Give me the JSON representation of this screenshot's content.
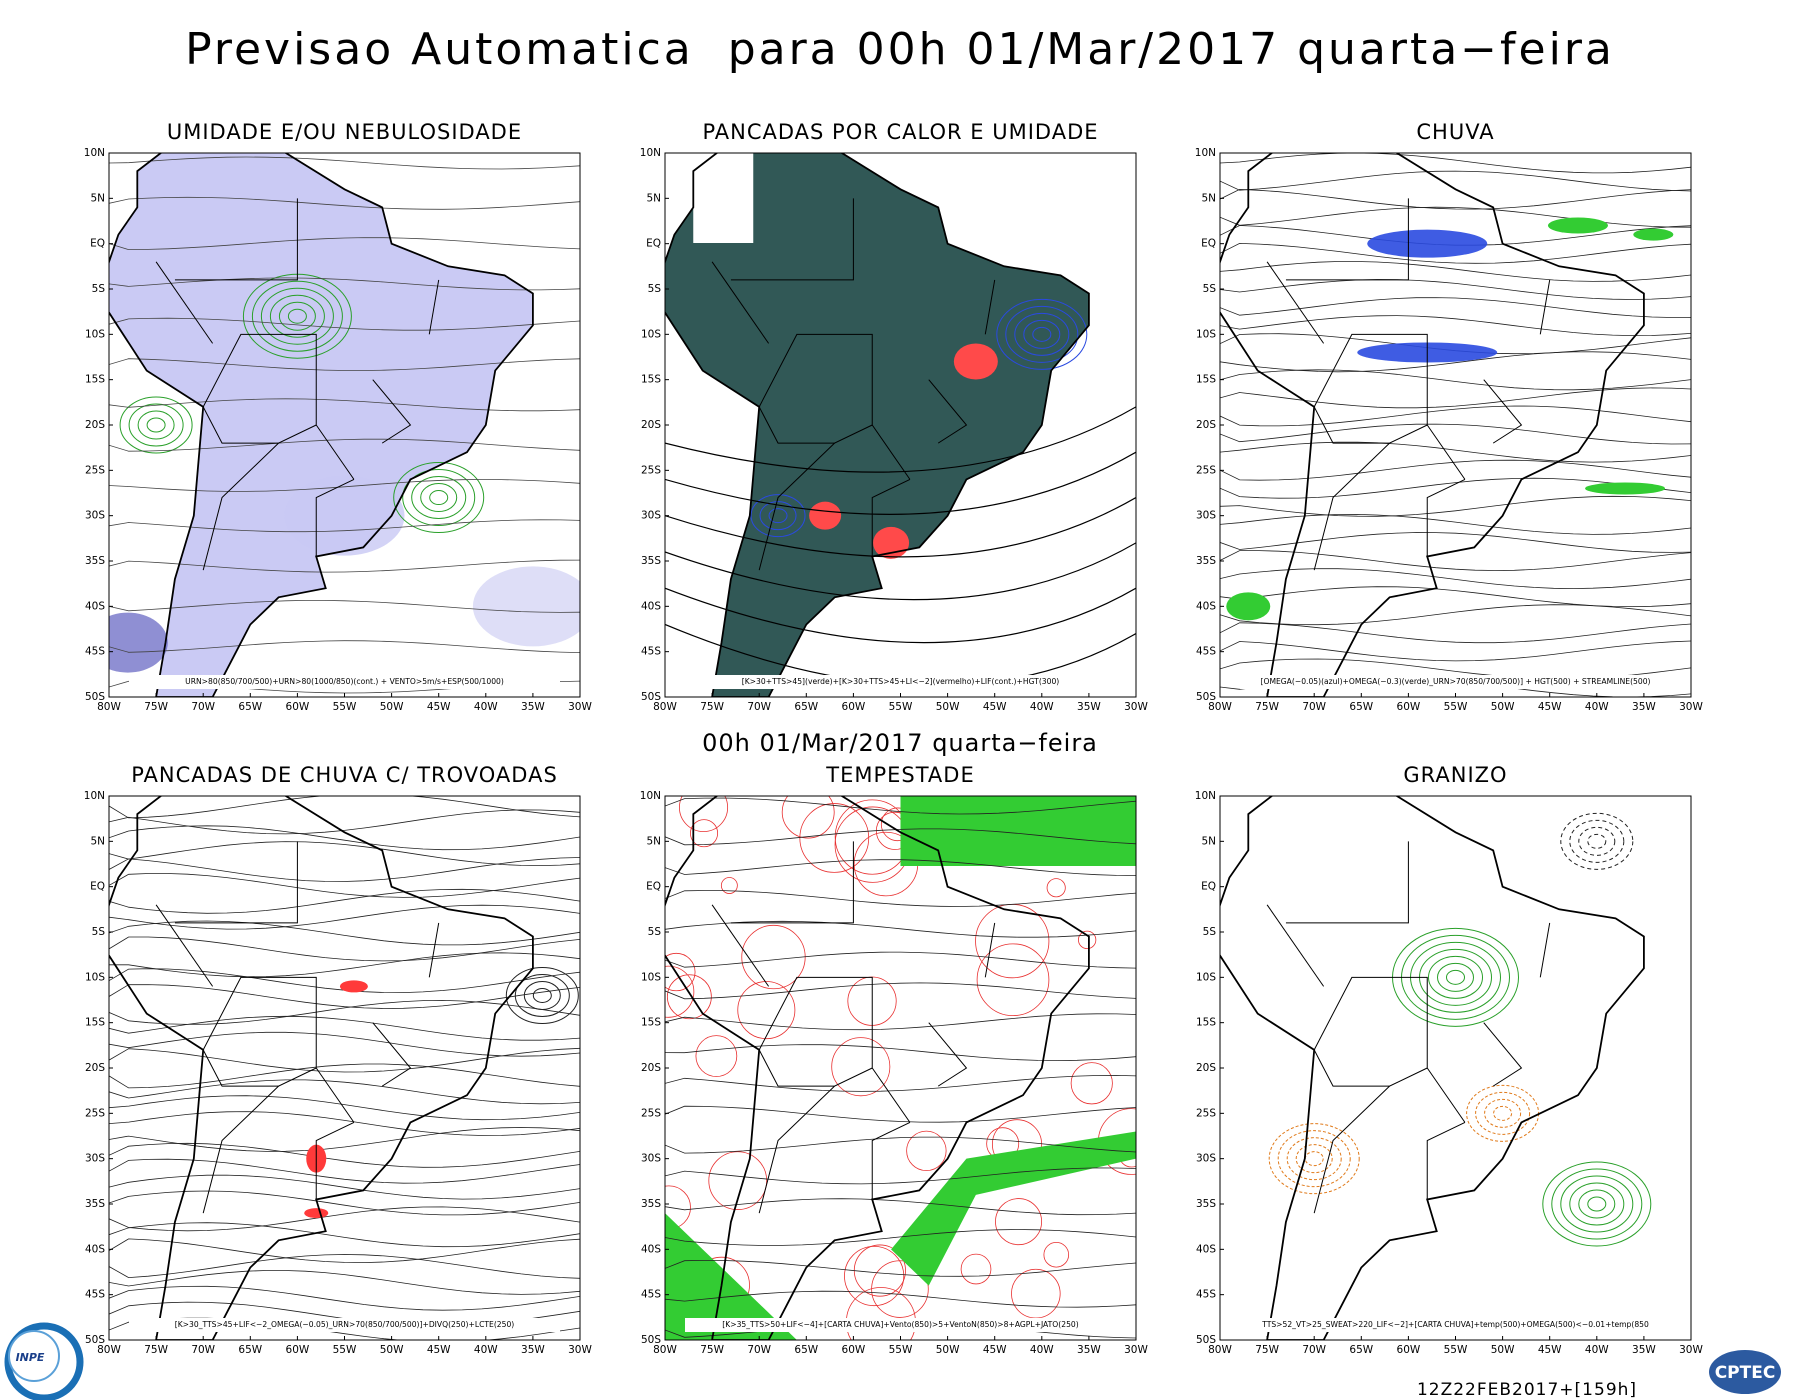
{
  "header": {
    "title": "Previsao Automatica  para 00h 01/Mar/2017 quarta−feira",
    "subtitle": "00h 01/Mar/2017 quarta−feira"
  },
  "panels": [
    {
      "title": "UMIDADE E/OU NEBULOSIDADE",
      "caption": "URN>80(850/700/500)+URN>80(1000/850)(cont.) + VENTO>5m/s+ESP(500/1000)"
    },
    {
      "title": "PANCADAS POR CALOR E UMIDADE",
      "caption": "[K>30+TTS>45](verde)+[K>30+TTS>45+LI<−2](vermelho)+LIF(cont.)+HGT(300)"
    },
    {
      "title": "CHUVA",
      "caption": "[OMEGA(−0.05)(azul)+OMEGA(−0.3)(verde)_URN>70(850/700/500)] + HGT(500) + STREAMLINE(500)"
    },
    {
      "title": "PANCADAS DE CHUVA C/ TROVOADAS",
      "caption": "[K>30_TTS>45+LIF<−2_OMEGA(−0.05)_URN>70(850/700/500)]+DIVQ(250)+LCTE(250)"
    },
    {
      "title": "TEMPESTADE",
      "caption": "[K>35_TTS>50+LIF<−4]+[CARTA CHUVA]+Vento(850)>5+VentoN(850)>8+AGPL+JATO(250)"
    },
    {
      "title": "GRANIZO",
      "caption": "TTS>52_VT>25_SWEAT>220_LIF<−2]+[CARTA CHUVA]+temp(500)+OMEGA(500)<−0.01+temp(850"
    }
  ],
  "lat_labels": [
    "10N",
    "5N",
    "EQ",
    "5S",
    "10S",
    "15S",
    "20S",
    "25S",
    "30S",
    "35S",
    "40S",
    "45S",
    "50S"
  ],
  "lon_labels": [
    "80W",
    "75W",
    "70W",
    "65W",
    "60W",
    "55W",
    "50W",
    "45W",
    "40W",
    "35W",
    "30W"
  ],
  "footer": {
    "timestamp": "12Z22FEB2017+[159h]",
    "logo_left": "INPE",
    "logo_right": "CPTEC"
  }
}
